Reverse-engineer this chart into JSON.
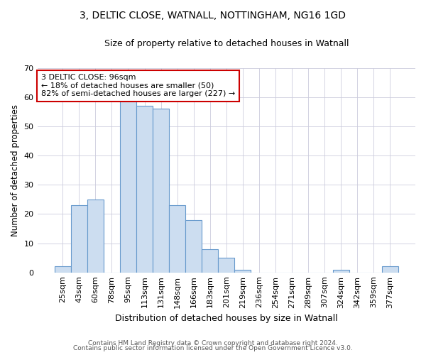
{
  "title1": "3, DELTIC CLOSE, WATNALL, NOTTINGHAM, NG16 1GD",
  "title2": "Size of property relative to detached houses in Watnall",
  "xlabel": "Distribution of detached houses by size in Watnall",
  "ylabel": "Number of detached properties",
  "categories": [
    "25sqm",
    "43sqm",
    "60sqm",
    "78sqm",
    "95sqm",
    "113sqm",
    "131sqm",
    "148sqm",
    "166sqm",
    "183sqm",
    "201sqm",
    "219sqm",
    "236sqm",
    "254sqm",
    "271sqm",
    "289sqm",
    "307sqm",
    "324sqm",
    "342sqm",
    "359sqm",
    "377sqm"
  ],
  "values": [
    2,
    23,
    25,
    0,
    59,
    57,
    56,
    23,
    18,
    8,
    5,
    1,
    0,
    0,
    0,
    0,
    0,
    1,
    0,
    0,
    2
  ],
  "bar_color": "#ccddf0",
  "bar_edge_color": "#6699cc",
  "ylim": [
    0,
    70
  ],
  "yticks": [
    0,
    10,
    20,
    30,
    40,
    50,
    60,
    70
  ],
  "annotation_text": "3 DELTIC CLOSE: 96sqm\n← 18% of detached houses are smaller (50)\n82% of semi-detached houses are larger (227) →",
  "annotation_box_color": "#ffffff",
  "annotation_box_edge": "#cc0000",
  "footer1": "Contains HM Land Registry data © Crown copyright and database right 2024.",
  "footer2": "Contains public sector information licensed under the Open Government Licence v3.0.",
  "bg_color": "#ffffff",
  "plot_bg_color": "#ffffff",
  "grid_color": "#ccccdd"
}
